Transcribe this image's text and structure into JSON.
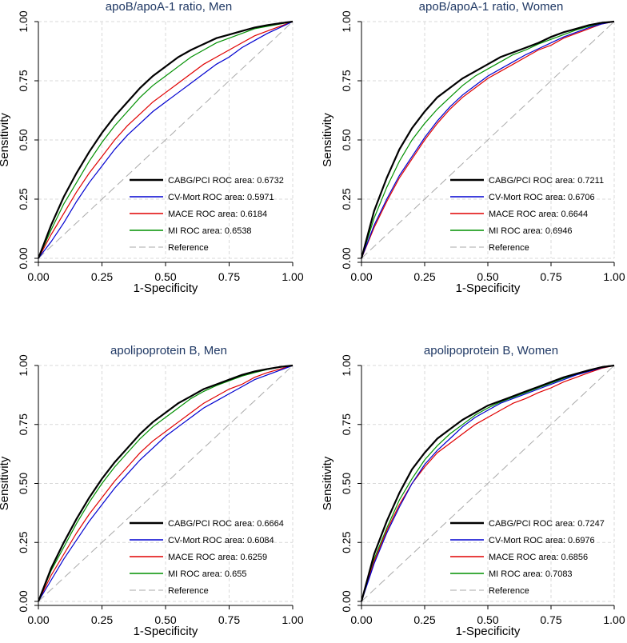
{
  "chart_data": [
    {
      "type": "line",
      "title": "apoB/apoA-1 ratio, Men",
      "xlabel": "1-Specificity",
      "ylabel": "Sensitivity",
      "xlim": [
        0,
        1
      ],
      "ylim": [
        0,
        1
      ],
      "xticks": [
        "0.00",
        "0.25",
        "0.50",
        "0.75",
        "1.00"
      ],
      "yticks": [
        "0.00",
        "0.25",
        "0.50",
        "0.75",
        "1.00"
      ],
      "grid": true,
      "legend_position": "bottom-right",
      "series": [
        {
          "name": "CABG/PCI ROC area: 0.6732",
          "color": "#000000",
          "auc": 0.6732,
          "x": [
            0,
            0.05,
            0.1,
            0.15,
            0.2,
            0.25,
            0.3,
            0.35,
            0.4,
            0.45,
            0.5,
            0.55,
            0.6,
            0.65,
            0.7,
            0.75,
            0.8,
            0.85,
            0.9,
            0.95,
            1
          ],
          "y": [
            0,
            0.14,
            0.26,
            0.36,
            0.45,
            0.53,
            0.6,
            0.66,
            0.72,
            0.77,
            0.81,
            0.85,
            0.88,
            0.905,
            0.93,
            0.945,
            0.96,
            0.975,
            0.985,
            0.993,
            1
          ]
        },
        {
          "name": "CV-Mort ROC area: 0.5971",
          "color": "#0000d0",
          "auc": 0.5971,
          "x": [
            0,
            0.05,
            0.1,
            0.15,
            0.2,
            0.25,
            0.3,
            0.35,
            0.4,
            0.45,
            0.5,
            0.55,
            0.6,
            0.65,
            0.7,
            0.75,
            0.8,
            0.85,
            0.9,
            0.95,
            1
          ],
          "y": [
            0,
            0.07,
            0.15,
            0.24,
            0.32,
            0.39,
            0.46,
            0.52,
            0.57,
            0.62,
            0.66,
            0.7,
            0.74,
            0.78,
            0.82,
            0.85,
            0.89,
            0.92,
            0.95,
            0.975,
            1
          ]
        },
        {
          "name": "MACE ROC area: 0.6184",
          "color": "#e00000",
          "auc": 0.6184,
          "x": [
            0,
            0.05,
            0.1,
            0.15,
            0.2,
            0.25,
            0.3,
            0.35,
            0.4,
            0.45,
            0.5,
            0.55,
            0.6,
            0.65,
            0.7,
            0.75,
            0.8,
            0.85,
            0.9,
            0.95,
            1
          ],
          "y": [
            0,
            0.1,
            0.19,
            0.28,
            0.36,
            0.43,
            0.5,
            0.56,
            0.61,
            0.66,
            0.7,
            0.74,
            0.78,
            0.82,
            0.85,
            0.88,
            0.91,
            0.94,
            0.96,
            0.98,
            1
          ]
        },
        {
          "name": "MI ROC area: 0.6538",
          "color": "#009000",
          "auc": 0.6538,
          "x": [
            0,
            0.05,
            0.1,
            0.15,
            0.2,
            0.25,
            0.3,
            0.35,
            0.4,
            0.45,
            0.5,
            0.55,
            0.6,
            0.65,
            0.7,
            0.75,
            0.8,
            0.85,
            0.9,
            0.95,
            1
          ],
          "y": [
            0,
            0.12,
            0.23,
            0.32,
            0.41,
            0.49,
            0.56,
            0.62,
            0.68,
            0.73,
            0.77,
            0.81,
            0.85,
            0.88,
            0.91,
            0.93,
            0.95,
            0.97,
            0.98,
            0.99,
            1
          ]
        },
        {
          "name": "Reference",
          "color": "#aaaaaa",
          "dashed": true,
          "x": [
            0,
            1
          ],
          "y": [
            0,
            1
          ]
        }
      ]
    },
    {
      "type": "line",
      "title": "apoB/apoA-1 ratio, Women",
      "xlabel": "1-Specificity",
      "ylabel": "Sensitivity",
      "xlim": [
        0,
        1
      ],
      "ylim": [
        0,
        1
      ],
      "xticks": [
        "0.00",
        "0.25",
        "0.50",
        "0.75",
        "1.00"
      ],
      "yticks": [
        "0.00",
        "0.25",
        "0.50",
        "0.75",
        "1.00"
      ],
      "grid": true,
      "legend_position": "bottom-right",
      "series": [
        {
          "name": "CABG/PCI ROC area: 0.7211",
          "color": "#000000",
          "auc": 0.7211,
          "x": [
            0,
            0.05,
            0.1,
            0.15,
            0.2,
            0.25,
            0.3,
            0.35,
            0.4,
            0.45,
            0.5,
            0.55,
            0.6,
            0.65,
            0.7,
            0.75,
            0.8,
            0.85,
            0.9,
            0.95,
            1
          ],
          "y": [
            0,
            0.2,
            0.34,
            0.46,
            0.55,
            0.62,
            0.68,
            0.72,
            0.76,
            0.79,
            0.82,
            0.85,
            0.87,
            0.89,
            0.91,
            0.935,
            0.955,
            0.97,
            0.985,
            0.995,
            1
          ]
        },
        {
          "name": "CV-Mort ROC area: 0.6706",
          "color": "#0000d0",
          "auc": 0.6706,
          "x": [
            0,
            0.05,
            0.1,
            0.15,
            0.2,
            0.25,
            0.3,
            0.35,
            0.4,
            0.45,
            0.5,
            0.55,
            0.6,
            0.65,
            0.7,
            0.75,
            0.8,
            0.85,
            0.9,
            0.95,
            1
          ],
          "y": [
            0,
            0.14,
            0.25,
            0.35,
            0.43,
            0.51,
            0.58,
            0.64,
            0.69,
            0.73,
            0.77,
            0.8,
            0.83,
            0.86,
            0.885,
            0.91,
            0.935,
            0.955,
            0.975,
            0.99,
            1
          ]
        },
        {
          "name": "MACE ROC area: 0.6644",
          "color": "#e00000",
          "auc": 0.6644,
          "x": [
            0,
            0.05,
            0.1,
            0.15,
            0.2,
            0.25,
            0.3,
            0.35,
            0.4,
            0.45,
            0.5,
            0.55,
            0.6,
            0.65,
            0.7,
            0.75,
            0.8,
            0.85,
            0.9,
            0.95,
            1
          ],
          "y": [
            0,
            0.13,
            0.24,
            0.34,
            0.42,
            0.5,
            0.57,
            0.63,
            0.68,
            0.72,
            0.76,
            0.79,
            0.82,
            0.85,
            0.88,
            0.9,
            0.93,
            0.95,
            0.97,
            0.99,
            1
          ]
        },
        {
          "name": "MI ROC area: 0.6946",
          "color": "#009000",
          "auc": 0.6946,
          "x": [
            0,
            0.05,
            0.1,
            0.15,
            0.2,
            0.25,
            0.3,
            0.35,
            0.4,
            0.45,
            0.5,
            0.55,
            0.6,
            0.65,
            0.7,
            0.75,
            0.8,
            0.85,
            0.9,
            0.95,
            1
          ],
          "y": [
            0,
            0.17,
            0.3,
            0.41,
            0.5,
            0.57,
            0.63,
            0.68,
            0.73,
            0.77,
            0.8,
            0.83,
            0.86,
            0.88,
            0.905,
            0.925,
            0.945,
            0.965,
            0.98,
            0.993,
            1
          ]
        },
        {
          "name": "Reference",
          "color": "#aaaaaa",
          "dashed": true,
          "x": [
            0,
            1
          ],
          "y": [
            0,
            1
          ]
        }
      ]
    },
    {
      "type": "line",
      "title": "apolipoprotein B, Men",
      "xlabel": "1-Specificity",
      "ylabel": "Sensitivity",
      "xlim": [
        0,
        1
      ],
      "ylim": [
        0,
        1
      ],
      "xticks": [
        "0.00",
        "0.25",
        "0.50",
        "0.75",
        "1.00"
      ],
      "yticks": [
        "0.00",
        "0.25",
        "0.50",
        "0.75",
        "1.00"
      ],
      "grid": true,
      "legend_position": "bottom-right",
      "series": [
        {
          "name": "CABG/PCI ROC area: 0.6664",
          "color": "#000000",
          "auc": 0.6664,
          "x": [
            0,
            0.05,
            0.1,
            0.15,
            0.2,
            0.25,
            0.3,
            0.35,
            0.4,
            0.45,
            0.5,
            0.55,
            0.6,
            0.65,
            0.7,
            0.75,
            0.8,
            0.85,
            0.9,
            0.95,
            1
          ],
          "y": [
            0,
            0.14,
            0.25,
            0.35,
            0.44,
            0.52,
            0.59,
            0.65,
            0.71,
            0.76,
            0.8,
            0.84,
            0.87,
            0.9,
            0.92,
            0.94,
            0.96,
            0.975,
            0.985,
            0.994,
            1
          ]
        },
        {
          "name": "CV-Mort ROC area: 0.6084",
          "color": "#0000d0",
          "auc": 0.6084,
          "x": [
            0,
            0.05,
            0.1,
            0.15,
            0.2,
            0.25,
            0.3,
            0.35,
            0.4,
            0.45,
            0.5,
            0.55,
            0.6,
            0.65,
            0.7,
            0.75,
            0.8,
            0.85,
            0.9,
            0.95,
            1
          ],
          "y": [
            0,
            0.09,
            0.18,
            0.26,
            0.34,
            0.41,
            0.48,
            0.54,
            0.6,
            0.65,
            0.7,
            0.74,
            0.78,
            0.82,
            0.85,
            0.88,
            0.91,
            0.94,
            0.96,
            0.98,
            1
          ]
        },
        {
          "name": "MACE ROC area: 0.6259",
          "color": "#e00000",
          "auc": 0.6259,
          "x": [
            0,
            0.05,
            0.1,
            0.15,
            0.2,
            0.25,
            0.3,
            0.35,
            0.4,
            0.45,
            0.5,
            0.55,
            0.6,
            0.65,
            0.7,
            0.75,
            0.8,
            0.85,
            0.9,
            0.95,
            1
          ],
          "y": [
            0,
            0.11,
            0.2,
            0.29,
            0.37,
            0.44,
            0.51,
            0.57,
            0.63,
            0.68,
            0.72,
            0.76,
            0.8,
            0.84,
            0.87,
            0.9,
            0.92,
            0.95,
            0.97,
            0.985,
            1
          ]
        },
        {
          "name": "MI ROC area: 0.655",
          "color": "#009000",
          "auc": 0.655,
          "x": [
            0,
            0.05,
            0.1,
            0.15,
            0.2,
            0.25,
            0.3,
            0.35,
            0.4,
            0.45,
            0.5,
            0.55,
            0.6,
            0.65,
            0.7,
            0.75,
            0.8,
            0.85,
            0.9,
            0.95,
            1
          ],
          "y": [
            0,
            0.13,
            0.23,
            0.33,
            0.42,
            0.5,
            0.57,
            0.63,
            0.69,
            0.74,
            0.78,
            0.82,
            0.86,
            0.89,
            0.915,
            0.935,
            0.955,
            0.97,
            0.983,
            0.993,
            1
          ]
        },
        {
          "name": "Reference",
          "color": "#aaaaaa",
          "dashed": true,
          "x": [
            0,
            1
          ],
          "y": [
            0,
            1
          ]
        }
      ]
    },
    {
      "type": "line",
      "title": "apolipoprotein B, Women",
      "xlabel": "1-Specificity",
      "ylabel": "Sensitivity",
      "xlim": [
        0,
        1
      ],
      "ylim": [
        0,
        1
      ],
      "xticks": [
        "0.00",
        "0.25",
        "0.50",
        "0.75",
        "1.00"
      ],
      "yticks": [
        "0.00",
        "0.25",
        "0.50",
        "0.75",
        "1.00"
      ],
      "grid": true,
      "legend_position": "bottom-right",
      "series": [
        {
          "name": "CABG/PCI ROC area: 0.7247",
          "color": "#000000",
          "auc": 0.7247,
          "x": [
            0,
            0.05,
            0.1,
            0.15,
            0.2,
            0.25,
            0.3,
            0.35,
            0.4,
            0.45,
            0.5,
            0.55,
            0.6,
            0.65,
            0.7,
            0.75,
            0.8,
            0.85,
            0.9,
            0.95,
            1
          ],
          "y": [
            0,
            0.2,
            0.34,
            0.46,
            0.56,
            0.63,
            0.69,
            0.73,
            0.77,
            0.8,
            0.83,
            0.85,
            0.87,
            0.89,
            0.91,
            0.93,
            0.95,
            0.965,
            0.98,
            0.993,
            1
          ]
        },
        {
          "name": "CV-Mort ROC area: 0.6976",
          "color": "#0000d0",
          "auc": 0.6976,
          "x": [
            0,
            0.05,
            0.1,
            0.15,
            0.2,
            0.25,
            0.3,
            0.35,
            0.4,
            0.45,
            0.5,
            0.55,
            0.6,
            0.65,
            0.7,
            0.75,
            0.8,
            0.85,
            0.9,
            0.95,
            1
          ],
          "y": [
            0,
            0.16,
            0.29,
            0.4,
            0.5,
            0.58,
            0.64,
            0.69,
            0.74,
            0.78,
            0.81,
            0.84,
            0.86,
            0.88,
            0.9,
            0.92,
            0.94,
            0.96,
            0.975,
            0.99,
            1
          ]
        },
        {
          "name": "MACE ROC area: 0.6856",
          "color": "#e00000",
          "auc": 0.6856,
          "x": [
            0,
            0.05,
            0.1,
            0.15,
            0.2,
            0.25,
            0.3,
            0.35,
            0.4,
            0.45,
            0.5,
            0.55,
            0.6,
            0.65,
            0.7,
            0.75,
            0.8,
            0.85,
            0.9,
            0.95,
            1
          ],
          "y": [
            0,
            0.17,
            0.3,
            0.41,
            0.5,
            0.57,
            0.63,
            0.67,
            0.71,
            0.75,
            0.78,
            0.81,
            0.84,
            0.86,
            0.885,
            0.905,
            0.93,
            0.95,
            0.97,
            0.988,
            1
          ]
        },
        {
          "name": "MI ROC area: 0.7083",
          "color": "#009000",
          "auc": 0.7083,
          "x": [
            0,
            0.05,
            0.1,
            0.15,
            0.2,
            0.25,
            0.3,
            0.35,
            0.4,
            0.45,
            0.5,
            0.55,
            0.6,
            0.65,
            0.7,
            0.75,
            0.8,
            0.85,
            0.9,
            0.95,
            1
          ],
          "y": [
            0,
            0.18,
            0.31,
            0.43,
            0.52,
            0.6,
            0.66,
            0.71,
            0.75,
            0.79,
            0.82,
            0.845,
            0.865,
            0.885,
            0.905,
            0.925,
            0.945,
            0.962,
            0.978,
            0.991,
            1
          ]
        },
        {
          "name": "Reference",
          "color": "#aaaaaa",
          "dashed": true,
          "x": [
            0,
            1
          ],
          "y": [
            0,
            1
          ]
        }
      ]
    }
  ]
}
